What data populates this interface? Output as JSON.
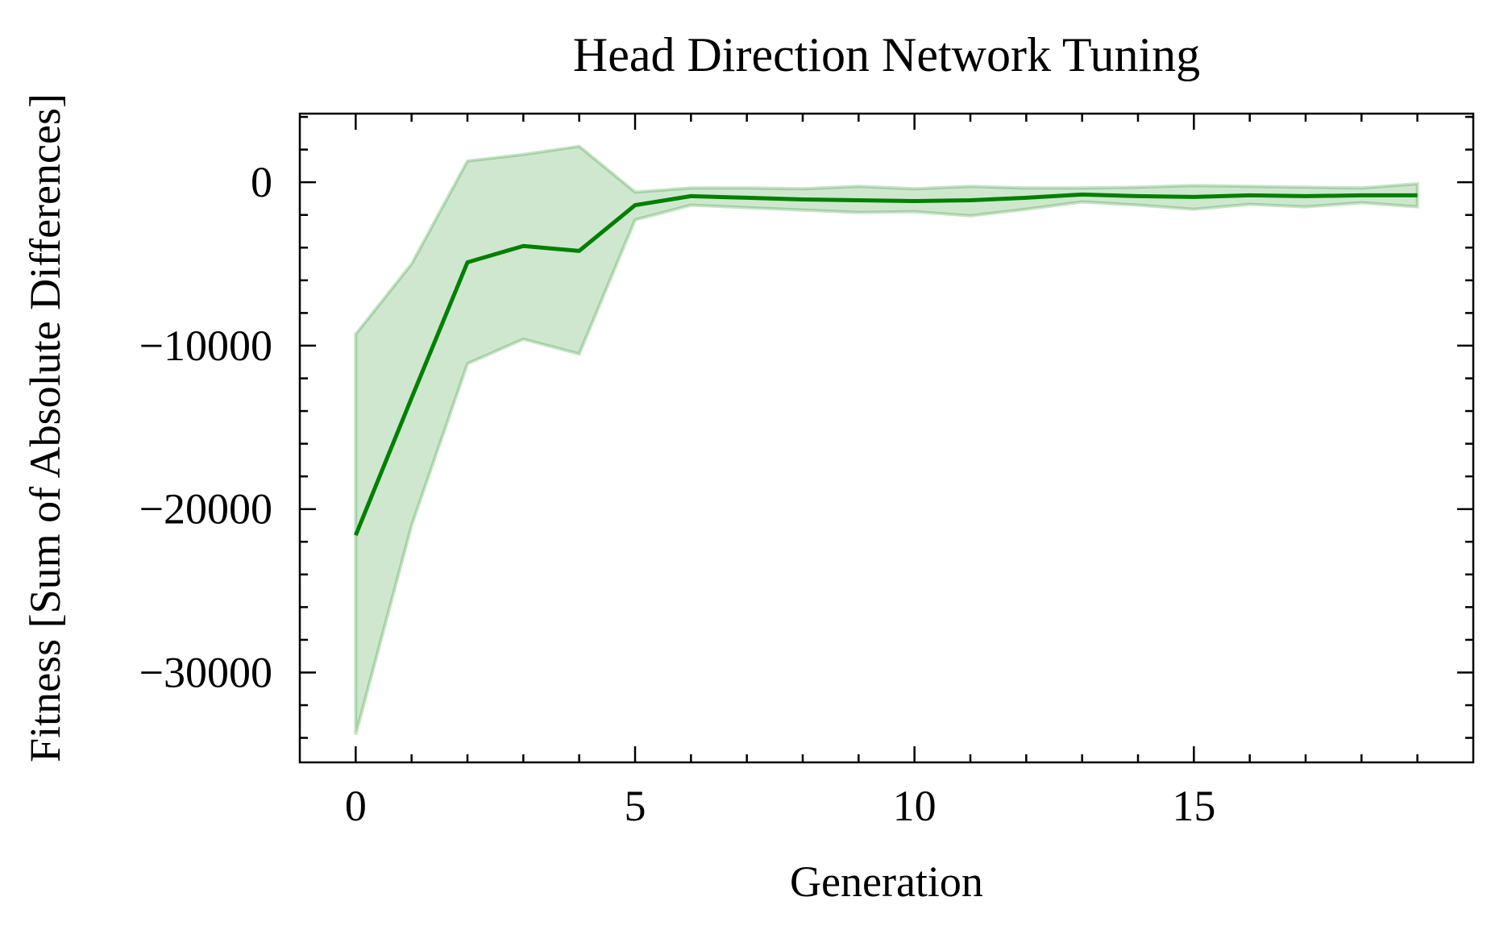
{
  "chart_data": {
    "type": "line",
    "title": "Head Direction Network Tuning",
    "xlabel": "Generation",
    "ylabel": "Fitness [Sum of Absolute Differences]",
    "xlim": [
      -1,
      20
    ],
    "ylim": [
      -35500,
      4200
    ],
    "xticks": [
      0,
      5,
      10,
      15
    ],
    "xtick_labels": [
      "0",
      "5",
      "10",
      "15"
    ],
    "yticks": [
      0,
      -10000,
      -20000,
      -30000
    ],
    "ytick_labels": [
      "0",
      "−10000",
      "−20000",
      "−30000"
    ],
    "grid": false,
    "x": [
      0,
      1,
      2,
      3,
      4,
      5,
      6,
      7,
      8,
      9,
      10,
      11,
      12,
      13,
      14,
      15,
      16,
      17,
      18,
      19
    ],
    "series": [
      {
        "color": "#008000",
        "values": [
          -21600,
          -13200,
          -4900,
          -3900,
          -4200,
          -1400,
          -850,
          -950,
          -1050,
          -1100,
          -1150,
          -1100,
          -950,
          -750,
          -850,
          -900,
          -800,
          -850,
          -800,
          -800
        ],
        "band_upper": [
          -9300,
          -5000,
          1300,
          1700,
          2200,
          -600,
          -350,
          -350,
          -400,
          -250,
          -400,
          -250,
          -350,
          -350,
          -300,
          -200,
          -250,
          -300,
          -350,
          -100
        ],
        "band_lower": [
          -33800,
          -21000,
          -11100,
          -9600,
          -10500,
          -2300,
          -1400,
          -1550,
          -1700,
          -1850,
          -1800,
          -2050,
          -1650,
          -1200,
          -1400,
          -1650,
          -1350,
          -1500,
          -1250,
          -1500
        ],
        "band_color": "#008000"
      }
    ]
  }
}
